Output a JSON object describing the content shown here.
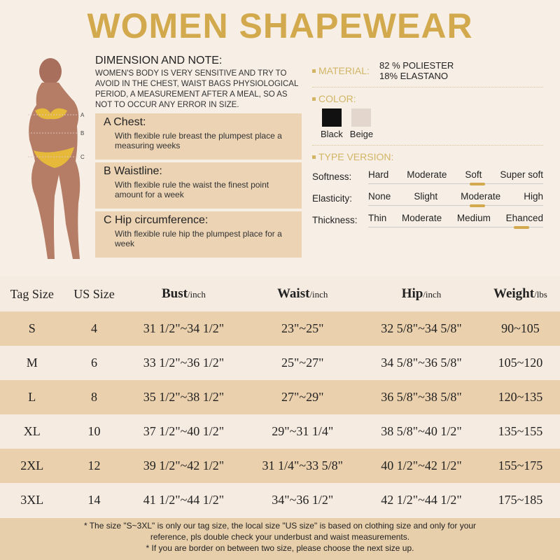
{
  "title": "WOMEN SHAPEWEAR",
  "dimension": {
    "heading": "DIMENSION AND NOTE:",
    "note": "WOMEN'S BODY IS VERY SENSITIVE AND TRY TO AVOID IN THE CHEST, WAIST BAGS PHYSIOLOGICAL PERIOD, A MEASUREMENT AFTER A MEAL, SO AS NOT TO OCCUR ANY ERROR IN SIZE.",
    "items": [
      {
        "title": "A Chest:",
        "desc": "With flexible rule breast the plumpest place a measuring weeks"
      },
      {
        "title": "B Waistline:",
        "desc": "With flexible rule the waist the finest point amount for a week"
      },
      {
        "title": "C Hip circumference:",
        "desc": "With flexible rule hip the plumpest place for a week"
      }
    ]
  },
  "figure_labels": [
    "A",
    "B",
    "C"
  ],
  "material": {
    "label": "MATERIAL:",
    "lines": [
      "82 % POLIESTER",
      "18% ELASTANO"
    ]
  },
  "color": {
    "label": "COLOR:",
    "swatches": [
      {
        "name": "Black",
        "hex": "#111111"
      },
      {
        "name": "Beige",
        "hex": "#e3d6cc"
      }
    ]
  },
  "type_version": {
    "label": "TYPE VERSION:",
    "rows": [
      {
        "label": "Softness:",
        "options": [
          "Hard",
          "Moderate",
          "Soft",
          "Super soft"
        ],
        "selected": "Soft"
      },
      {
        "label": "Elasticity:",
        "options": [
          "None",
          "Slight",
          "Moderate",
          "High"
        ],
        "selected": "Moderate"
      },
      {
        "label": "Thickness:",
        "options": [
          "Thin",
          "Moderate",
          "Medium",
          "Ehanced"
        ],
        "selected": "Ehanced"
      }
    ]
  },
  "table": {
    "headers": [
      {
        "main": "Tag Size",
        "unit": ""
      },
      {
        "main": "US Size",
        "unit": ""
      },
      {
        "main": "Bust",
        "unit": "/inch"
      },
      {
        "main": "Waist",
        "unit": "/inch"
      },
      {
        "main": "Hip",
        "unit": "/inch"
      },
      {
        "main": "Weight",
        "unit": "/lbs"
      }
    ],
    "rows": [
      [
        "S",
        "4",
        "31 1/2\"~34 1/2\"",
        "23\"~25\"",
        "32 5/8\"~34 5/8\"",
        "90~105"
      ],
      [
        "M",
        "6",
        "33 1/2\"~36 1/2\"",
        "25\"~27\"",
        "34 5/8\"~36 5/8\"",
        "105~120"
      ],
      [
        "L",
        "8",
        "35 1/2\"~38 1/2\"",
        "27\"~29\"",
        "36 5/8\"~38 5/8\"",
        "120~135"
      ],
      [
        "XL",
        "10",
        "37 1/2\"~40 1/2\"",
        "29\"~31 1/4\"",
        "38 5/8\"~40 1/2\"",
        "135~155"
      ],
      [
        "2XL",
        "12",
        "39 1/2\"~42 1/2\"",
        "31 1/4\"~33 5/8\"",
        "40 1/2\"~42 1/2\"",
        "155~175"
      ],
      [
        "3XL",
        "14",
        "41 1/2\"~44 1/2\"",
        "34\"~36 1/2\"",
        "42 1/2\"~44 1/2\"",
        "175~185"
      ]
    ]
  },
  "footnotes": [
    "* The size \"S~3XL\" is only our tag size, the local size \"US size\" is based on clothing size and only for your reference, pls double check your underbust and waist measurements.",
    "* If you are border on between two size, please choose the next size up."
  ],
  "colors": {
    "gold": "#d2a94c",
    "tan": "#ead0ad",
    "light": "#f6ebe0"
  }
}
